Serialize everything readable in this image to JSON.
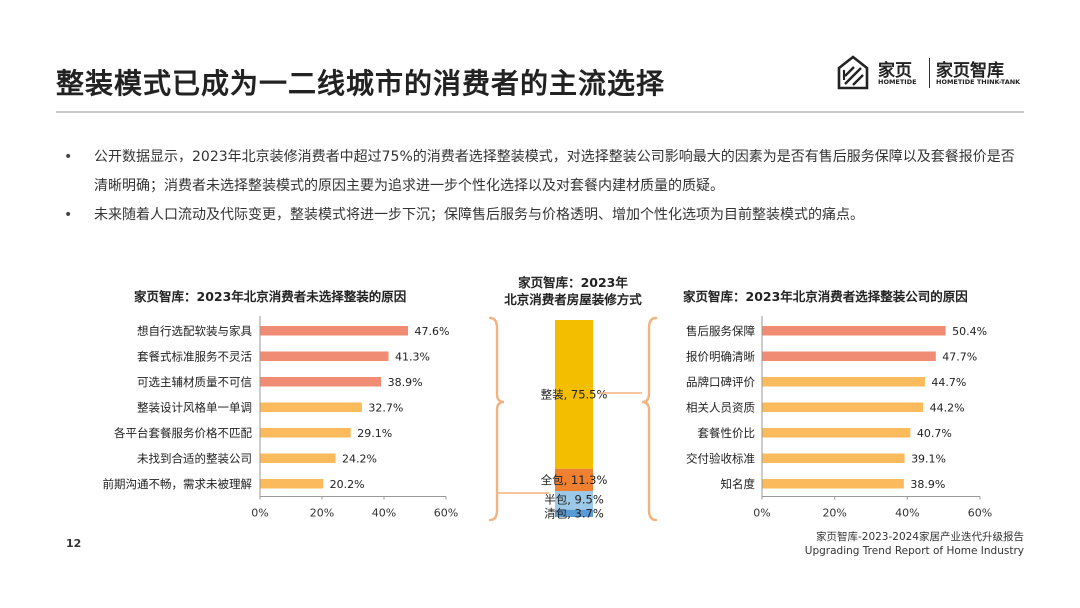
{
  "title": "整装模式已成为一二线城市的消费者的主流选择",
  "logo": {
    "cn1": "家页",
    "en1": "HOMETIDE",
    "cn2": "家页智库",
    "en2": "HOMETIDE THINK-TANK"
  },
  "bullets": [
    "公开数据显示，2023年北京装修消费者中超过75%的消费者选择整装模式，对选择整装公司影响最大的因素为是否有售后服务保障以及套餐报价是否清晰明确；消费者未选择整装模式的原因主要为追求进一步个性化选择以及对套餐内建材质量的质疑。",
    "未来随着人口流动及代际变更，整装模式将进一步下沉；保障售后服务与价格透明、增加个性化选项为目前整装模式的痛点。"
  ],
  "colors": {
    "salmon": "#F08C73",
    "orange": "#FBBA5C",
    "gold": "#F4BE00",
    "deep_orange": "#EE8030",
    "light_blue": "#9CC9E8",
    "blue": "#5B9BD5",
    "bracket": "#F2B37F"
  },
  "chart_data": [
    {
      "type": "bar",
      "orientation": "horizontal",
      "title": "家页智库：2023年北京消费者未选择整装的原因",
      "categories": [
        "想自行选配软装与家具",
        "套餐式标准服务不灵活",
        "可选主辅材质量不可信",
        "整装设计风格单一单调",
        "各平台套餐服务价格不匹配",
        "未找到合适的整装公司",
        "前期沟通不畅，需求未被理解"
      ],
      "values": [
        47.6,
        41.3,
        38.9,
        32.7,
        29.1,
        24.2,
        20.2
      ],
      "labels": [
        "47.6%",
        "41.3%",
        "38.9%",
        "32.7%",
        "29.1%",
        "24.2%",
        "20.2%"
      ],
      "highlight_count": 3,
      "xlim": [
        0,
        60
      ],
      "xticks": [
        "0%",
        "20%",
        "40%",
        "60%"
      ]
    },
    {
      "type": "bar",
      "orientation": "stacked-100",
      "title": "家页智库：2023年北京消费者房屋装修方式",
      "segments": [
        {
          "name": "整装",
          "value": 75.5,
          "label": "整装, 75.5%",
          "color": "#F4BE00"
        },
        {
          "name": "全包",
          "value": 11.3,
          "label": "全包, 11.3%",
          "color": "#EE8030"
        },
        {
          "name": "半包",
          "value": 9.5,
          "label": "半包, 9.5%",
          "color": "#9CC9E8"
        },
        {
          "name": "清包",
          "value": 3.7,
          "label": "清包, 3.7%",
          "color": "#5B9BD5"
        }
      ]
    },
    {
      "type": "bar",
      "orientation": "horizontal",
      "title": "家页智库：2023年北京消费者选择整装公司的原因",
      "categories": [
        "售后服务保障",
        "报价明确清晰",
        "品牌口碑评价",
        "相关人员资质",
        "套餐性价比",
        "交付验收标准",
        "知名度"
      ],
      "values": [
        50.4,
        47.7,
        44.7,
        44.2,
        40.7,
        39.1,
        38.9
      ],
      "labels": [
        "50.4%",
        "47.7%",
        "44.7%",
        "44.2%",
        "40.7%",
        "39.1%",
        "38.9%"
      ],
      "highlight_count": 2,
      "xlim": [
        0,
        60
      ],
      "xticks": [
        "0%",
        "20%",
        "40%",
        "60%"
      ]
    }
  ],
  "footer": {
    "page_number": "12",
    "source_cn": "家页智库-2023-2024家居产业迭代升级报告",
    "source_en": "Upgrading Trend Report of Home Industry"
  }
}
